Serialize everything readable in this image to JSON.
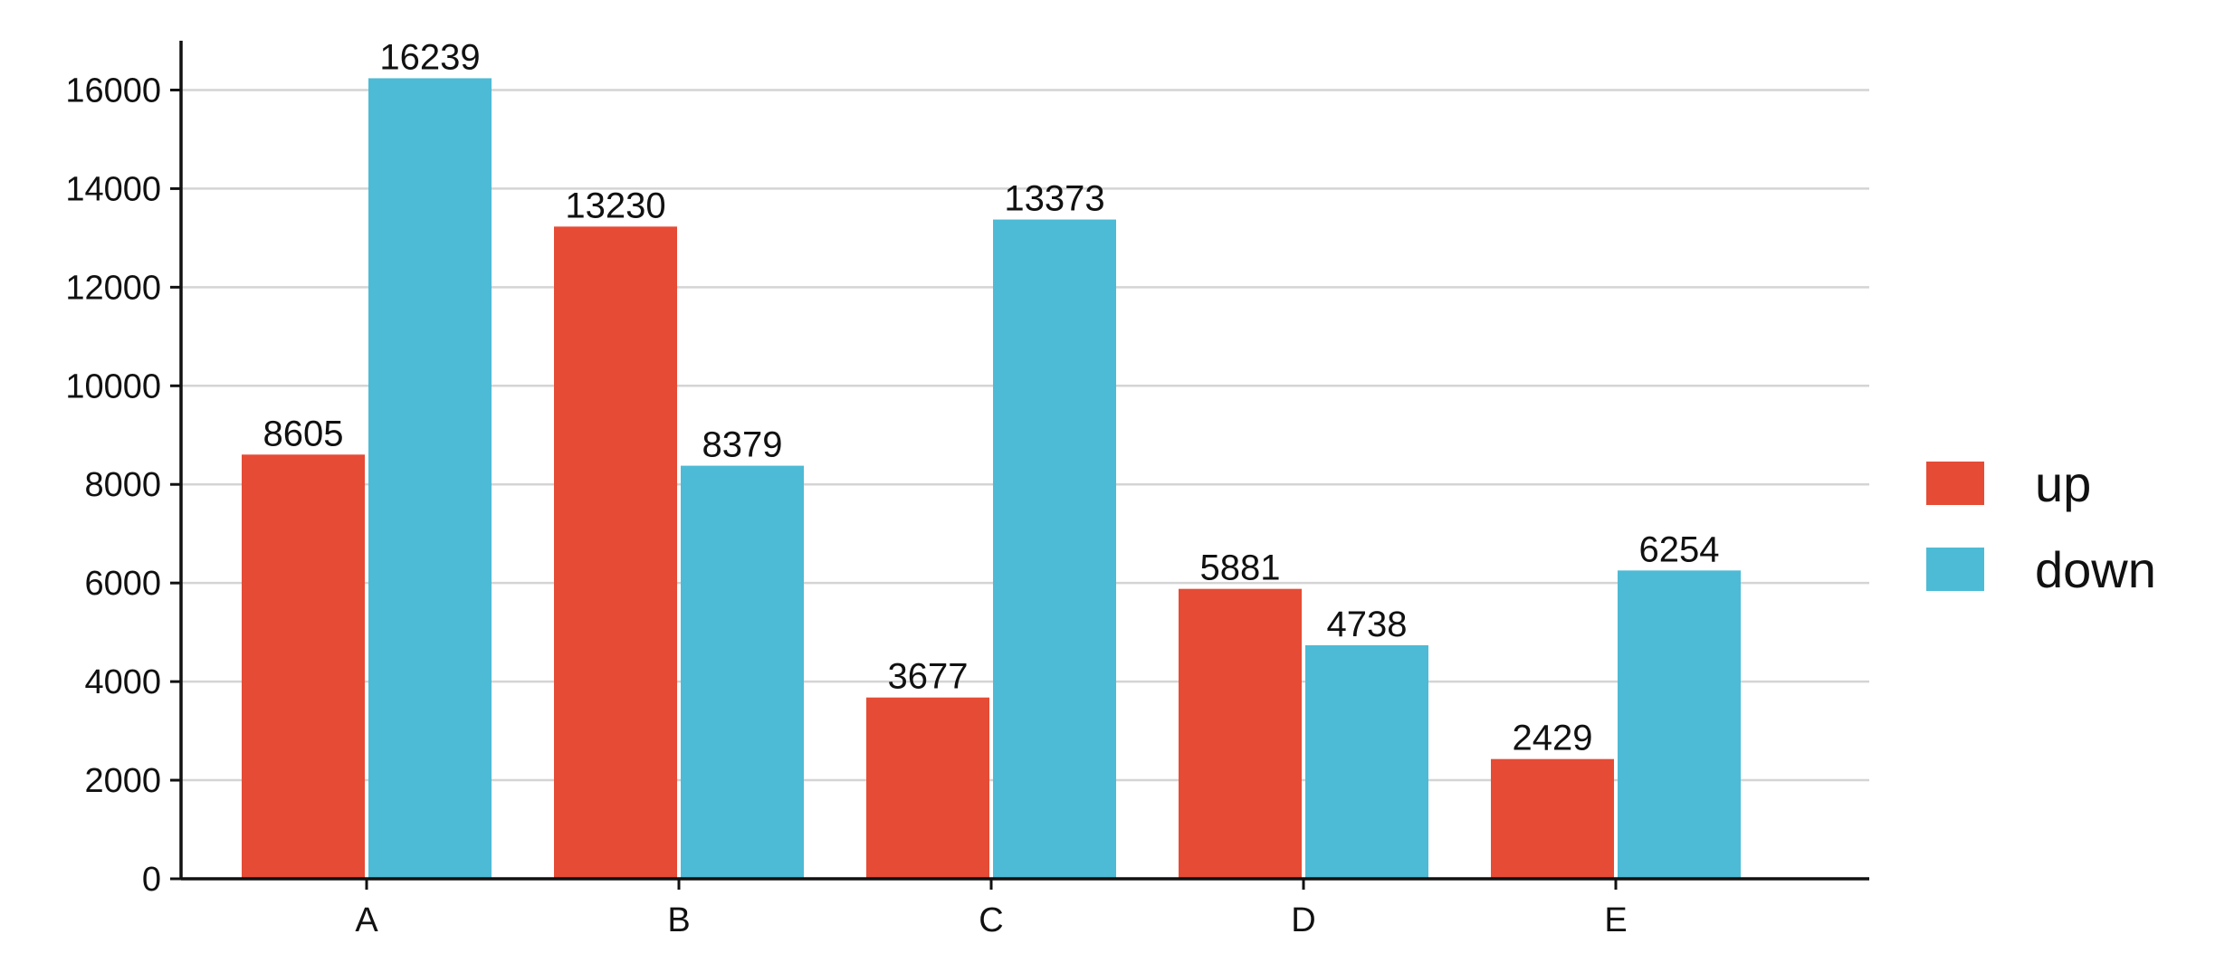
{
  "chart_data": {
    "type": "bar",
    "categories": [
      "A",
      "B",
      "C",
      "D",
      "E"
    ],
    "series": [
      {
        "name": "up",
        "color": "#E64B35",
        "values": [
          8605,
          13230,
          3677,
          5881,
          2429
        ]
      },
      {
        "name": "down",
        "color": "#4DBBD5",
        "values": [
          16239,
          8379,
          13373,
          4738,
          6254
        ]
      }
    ],
    "title": "",
    "xlabel": "",
    "ylabel": "",
    "ylim": [
      0,
      17000
    ],
    "yticks": [
      0,
      2000,
      4000,
      6000,
      8000,
      10000,
      12000,
      14000,
      16000
    ],
    "grid": "horizontal",
    "legend": "right"
  }
}
